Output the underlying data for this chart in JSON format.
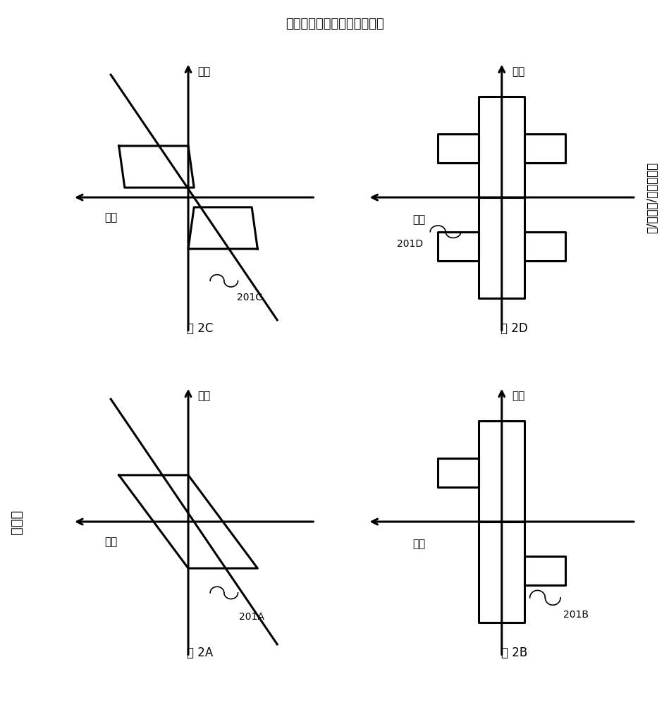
{
  "title_left": "铁电体",
  "title_right": "反/场诱导/弱吼铁电体",
  "subtitle": "取决于施加的电场的材料行为",
  "label_voltage": "电压",
  "label_charge": "电荷",
  "fig2A": "图 2A",
  "fig2B": "图 2B",
  "fig2C": "图 2C",
  "fig2D": "图 2D",
  "label_201A": "201A",
  "label_201B": "201B",
  "label_201C": "201C",
  "label_201D": "201D",
  "bg_color": "#ffffff",
  "line_color": "#000000",
  "line_width": 2.2
}
